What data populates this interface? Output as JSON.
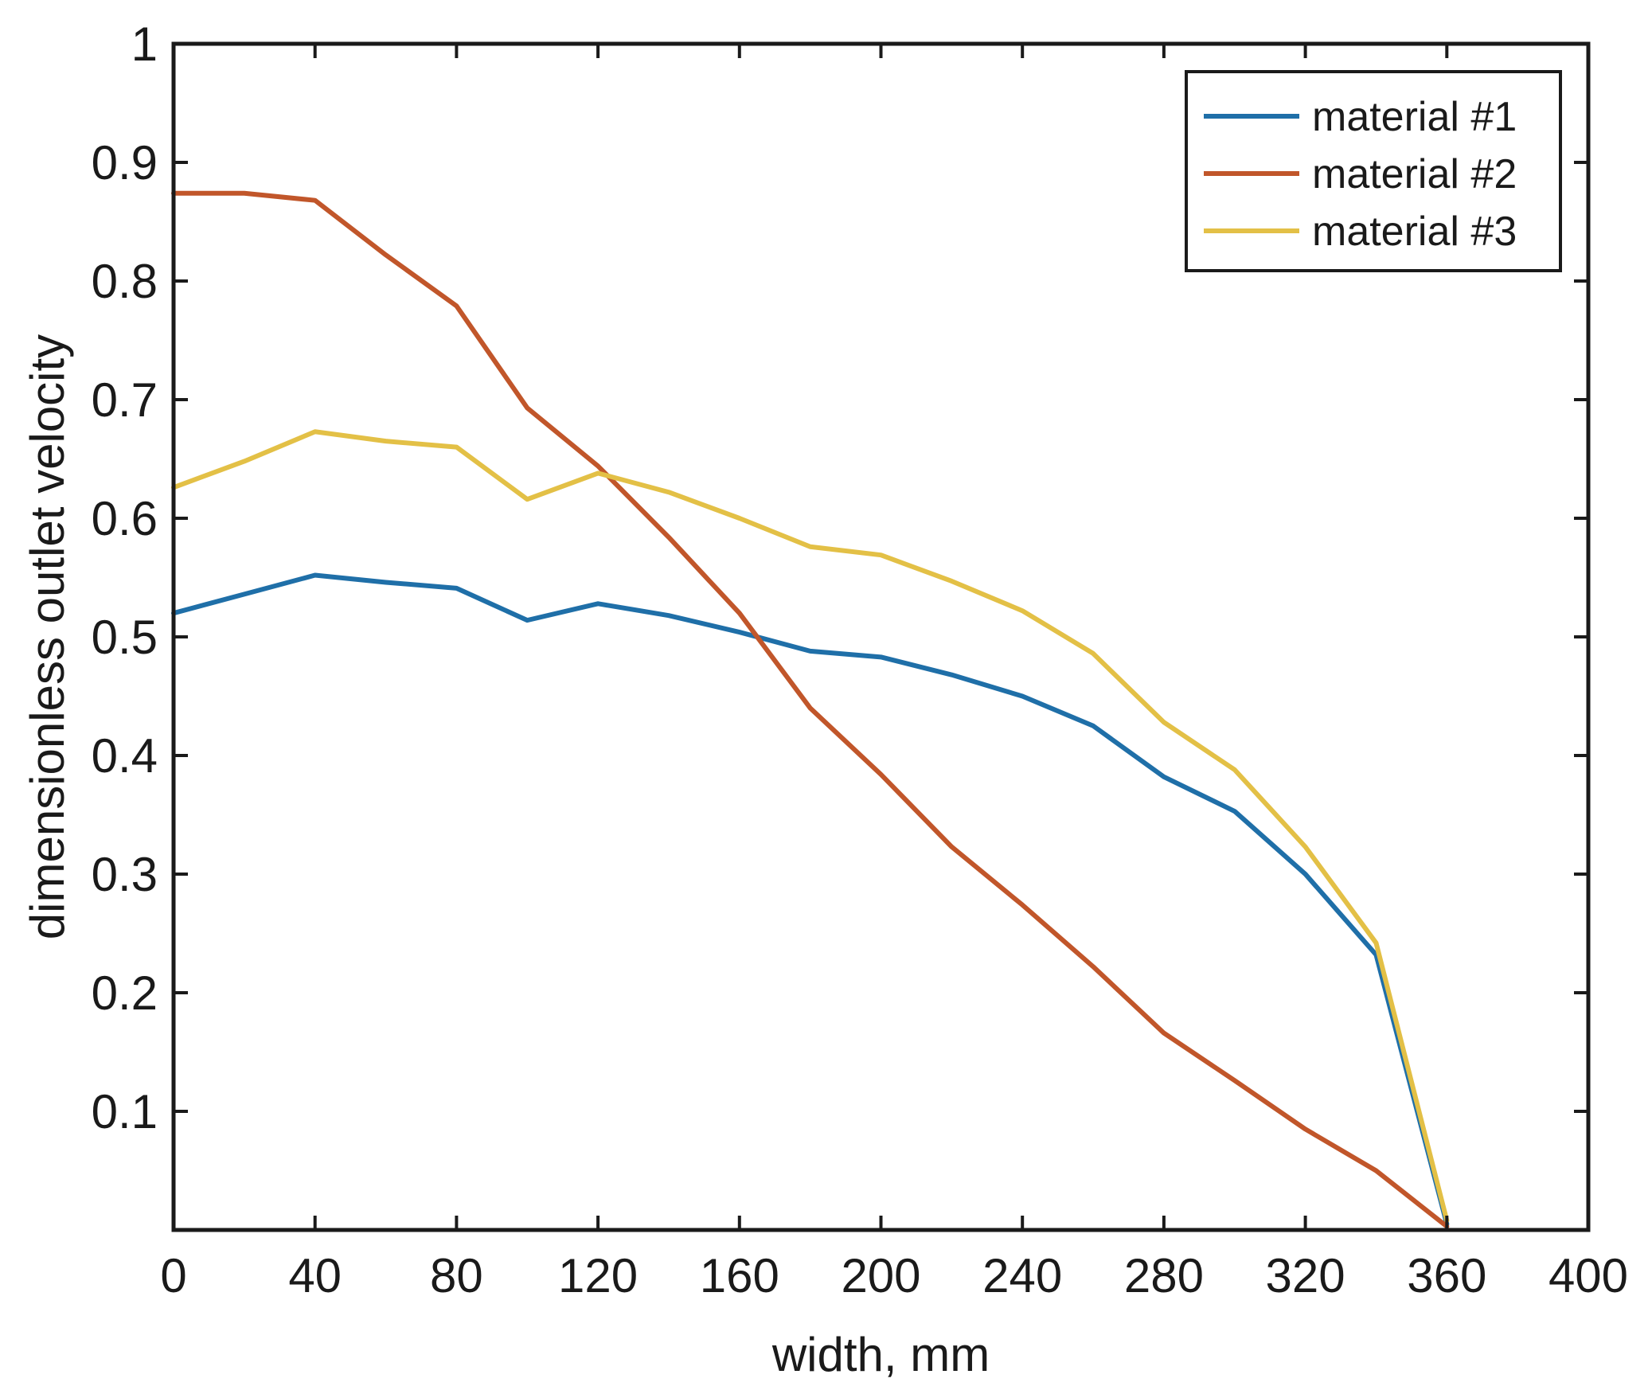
{
  "chart_data": {
    "type": "line",
    "title": "",
    "xlabel": "width, mm",
    "ylabel": "dimensionless outlet velocity",
    "xlim": [
      0,
      400
    ],
    "ylim": [
      0,
      1
    ],
    "xticks": [
      0,
      40,
      80,
      120,
      160,
      200,
      240,
      280,
      320,
      360,
      400
    ],
    "yticks": [
      0.1,
      0.2,
      0.3,
      0.4,
      0.5,
      0.6,
      0.7,
      0.8,
      0.9,
      1
    ],
    "ytick_labels": [
      "0.1",
      "0.2",
      "0.3",
      "0.4",
      "0.5",
      "0.6",
      "0.7",
      "0.8",
      "0.9",
      "1"
    ],
    "grid": false,
    "legend_position": "top-right",
    "x": [
      0,
      20,
      40,
      60,
      80,
      100,
      120,
      140,
      160,
      180,
      200,
      220,
      240,
      260,
      280,
      300,
      320,
      340,
      360
    ],
    "series": [
      {
        "name": "material #1",
        "color": "#1f6fa8",
        "values": [
          0.52,
          0.536,
          0.552,
          0.546,
          0.541,
          0.514,
          0.528,
          0.518,
          0.504,
          0.488,
          0.483,
          0.468,
          0.45,
          0.425,
          0.382,
          0.353,
          0.3,
          0.232,
          0.005
        ]
      },
      {
        "name": "material #2",
        "color": "#c1562a",
        "values": [
          0.874,
          0.874,
          0.868,
          0.822,
          0.779,
          0.693,
          0.644,
          0.584,
          0.52,
          0.44,
          0.384,
          0.323,
          0.274,
          0.222,
          0.166,
          0.126,
          0.085,
          0.05,
          0.003
        ]
      },
      {
        "name": "material #3",
        "color": "#e3c046",
        "values": [
          0.626,
          0.648,
          0.673,
          0.665,
          0.66,
          0.616,
          0.638,
          0.622,
          0.6,
          0.576,
          0.569,
          0.547,
          0.522,
          0.486,
          0.428,
          0.388,
          0.323,
          0.242,
          0.008
        ]
      }
    ]
  }
}
